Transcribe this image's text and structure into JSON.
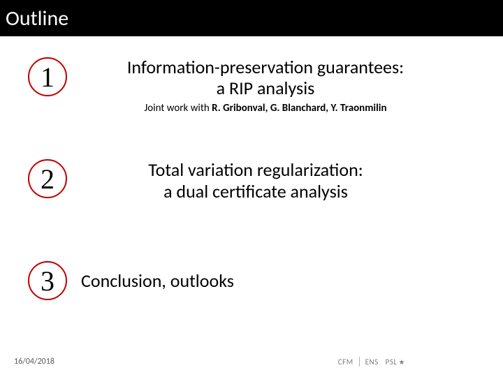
{
  "title": "Outline",
  "items": [
    {
      "number": "1",
      "main_line1": "Information-preservation guarantees:",
      "main_line2": "a RIP analysis",
      "sub_prefix": "Joint work with ",
      "sub_bold": "R. Gribonval, G. Blanchard, Y. Traonmilin"
    },
    {
      "number": "2",
      "main_line1": "Total variation regularization:",
      "main_line2": "a dual certificate analysis"
    },
    {
      "number": "3",
      "main_line1": "Conclusion, outlooks"
    }
  ],
  "footer": {
    "date": "16/04/2018",
    "logos": [
      "CFM",
      "ENS",
      "PSL"
    ]
  },
  "style": {
    "slide_width": 720,
    "slide_height": 540,
    "title_bg": "#000000",
    "title_color": "#ffffff",
    "title_fontsize": 30,
    "badge_border_color": "#c00000",
    "badge_text_color": "#000000",
    "badge_size": 56,
    "badge_border_width": 2.5,
    "badge_fontsize": 40,
    "main_text_fontsize": 26,
    "sub_text_fontsize": 15,
    "date_fontsize": 12,
    "date_color": "#595959",
    "logo_color": "#7f7f7f",
    "background": "#ffffff"
  }
}
